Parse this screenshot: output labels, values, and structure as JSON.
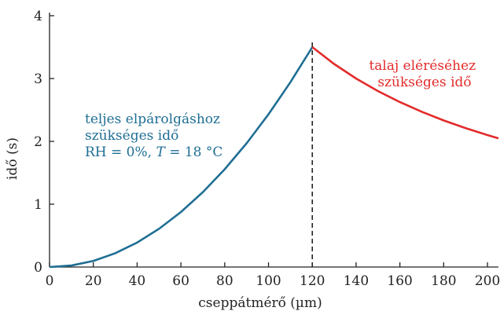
{
  "chart_data": {
    "type": "line",
    "xlabel": "cseppátmérő (µm)",
    "ylabel": "idő (s)",
    "xlim": [
      0,
      205
    ],
    "ylim": [
      0,
      4
    ],
    "x_ticks": [
      0,
      20,
      40,
      60,
      80,
      100,
      120,
      140,
      160,
      180,
      200
    ],
    "y_ticks": [
      0,
      1,
      2,
      3,
      4
    ],
    "grid": false,
    "colors": {
      "evaporation": "#1f6e94",
      "falling": "#e32b2b",
      "axis": "#222222"
    },
    "series": [
      {
        "x": [
          0,
          10,
          20,
          30,
          40,
          50,
          60,
          70,
          80,
          90,
          100,
          110,
          120
        ],
        "y": [
          0.0,
          0.024,
          0.097,
          0.219,
          0.389,
          0.608,
          0.875,
          1.191,
          1.556,
          1.969,
          2.431,
          2.941,
          3.5
        ]
      },
      {
        "x": [
          120,
          130,
          140,
          150,
          160,
          170,
          180,
          190,
          200,
          205
        ],
        "y": [
          3.5,
          3.231,
          3.0,
          2.8,
          2.625,
          2.471,
          2.333,
          2.211,
          2.1,
          2.049
        ]
      }
    ],
    "vline": {
      "x": 120,
      "y_top": 3.6
    },
    "annotations": {
      "evaporation": [
        "teljes elpárolgáshoz",
        "szükséges idő",
        "RH = 0%, "
      ],
      "evaporation_T": "T",
      "evaporation_temp": " = 18 °C",
      "falling": [
        "talaj eléréséhez",
        "szükséges idő"
      ]
    }
  }
}
